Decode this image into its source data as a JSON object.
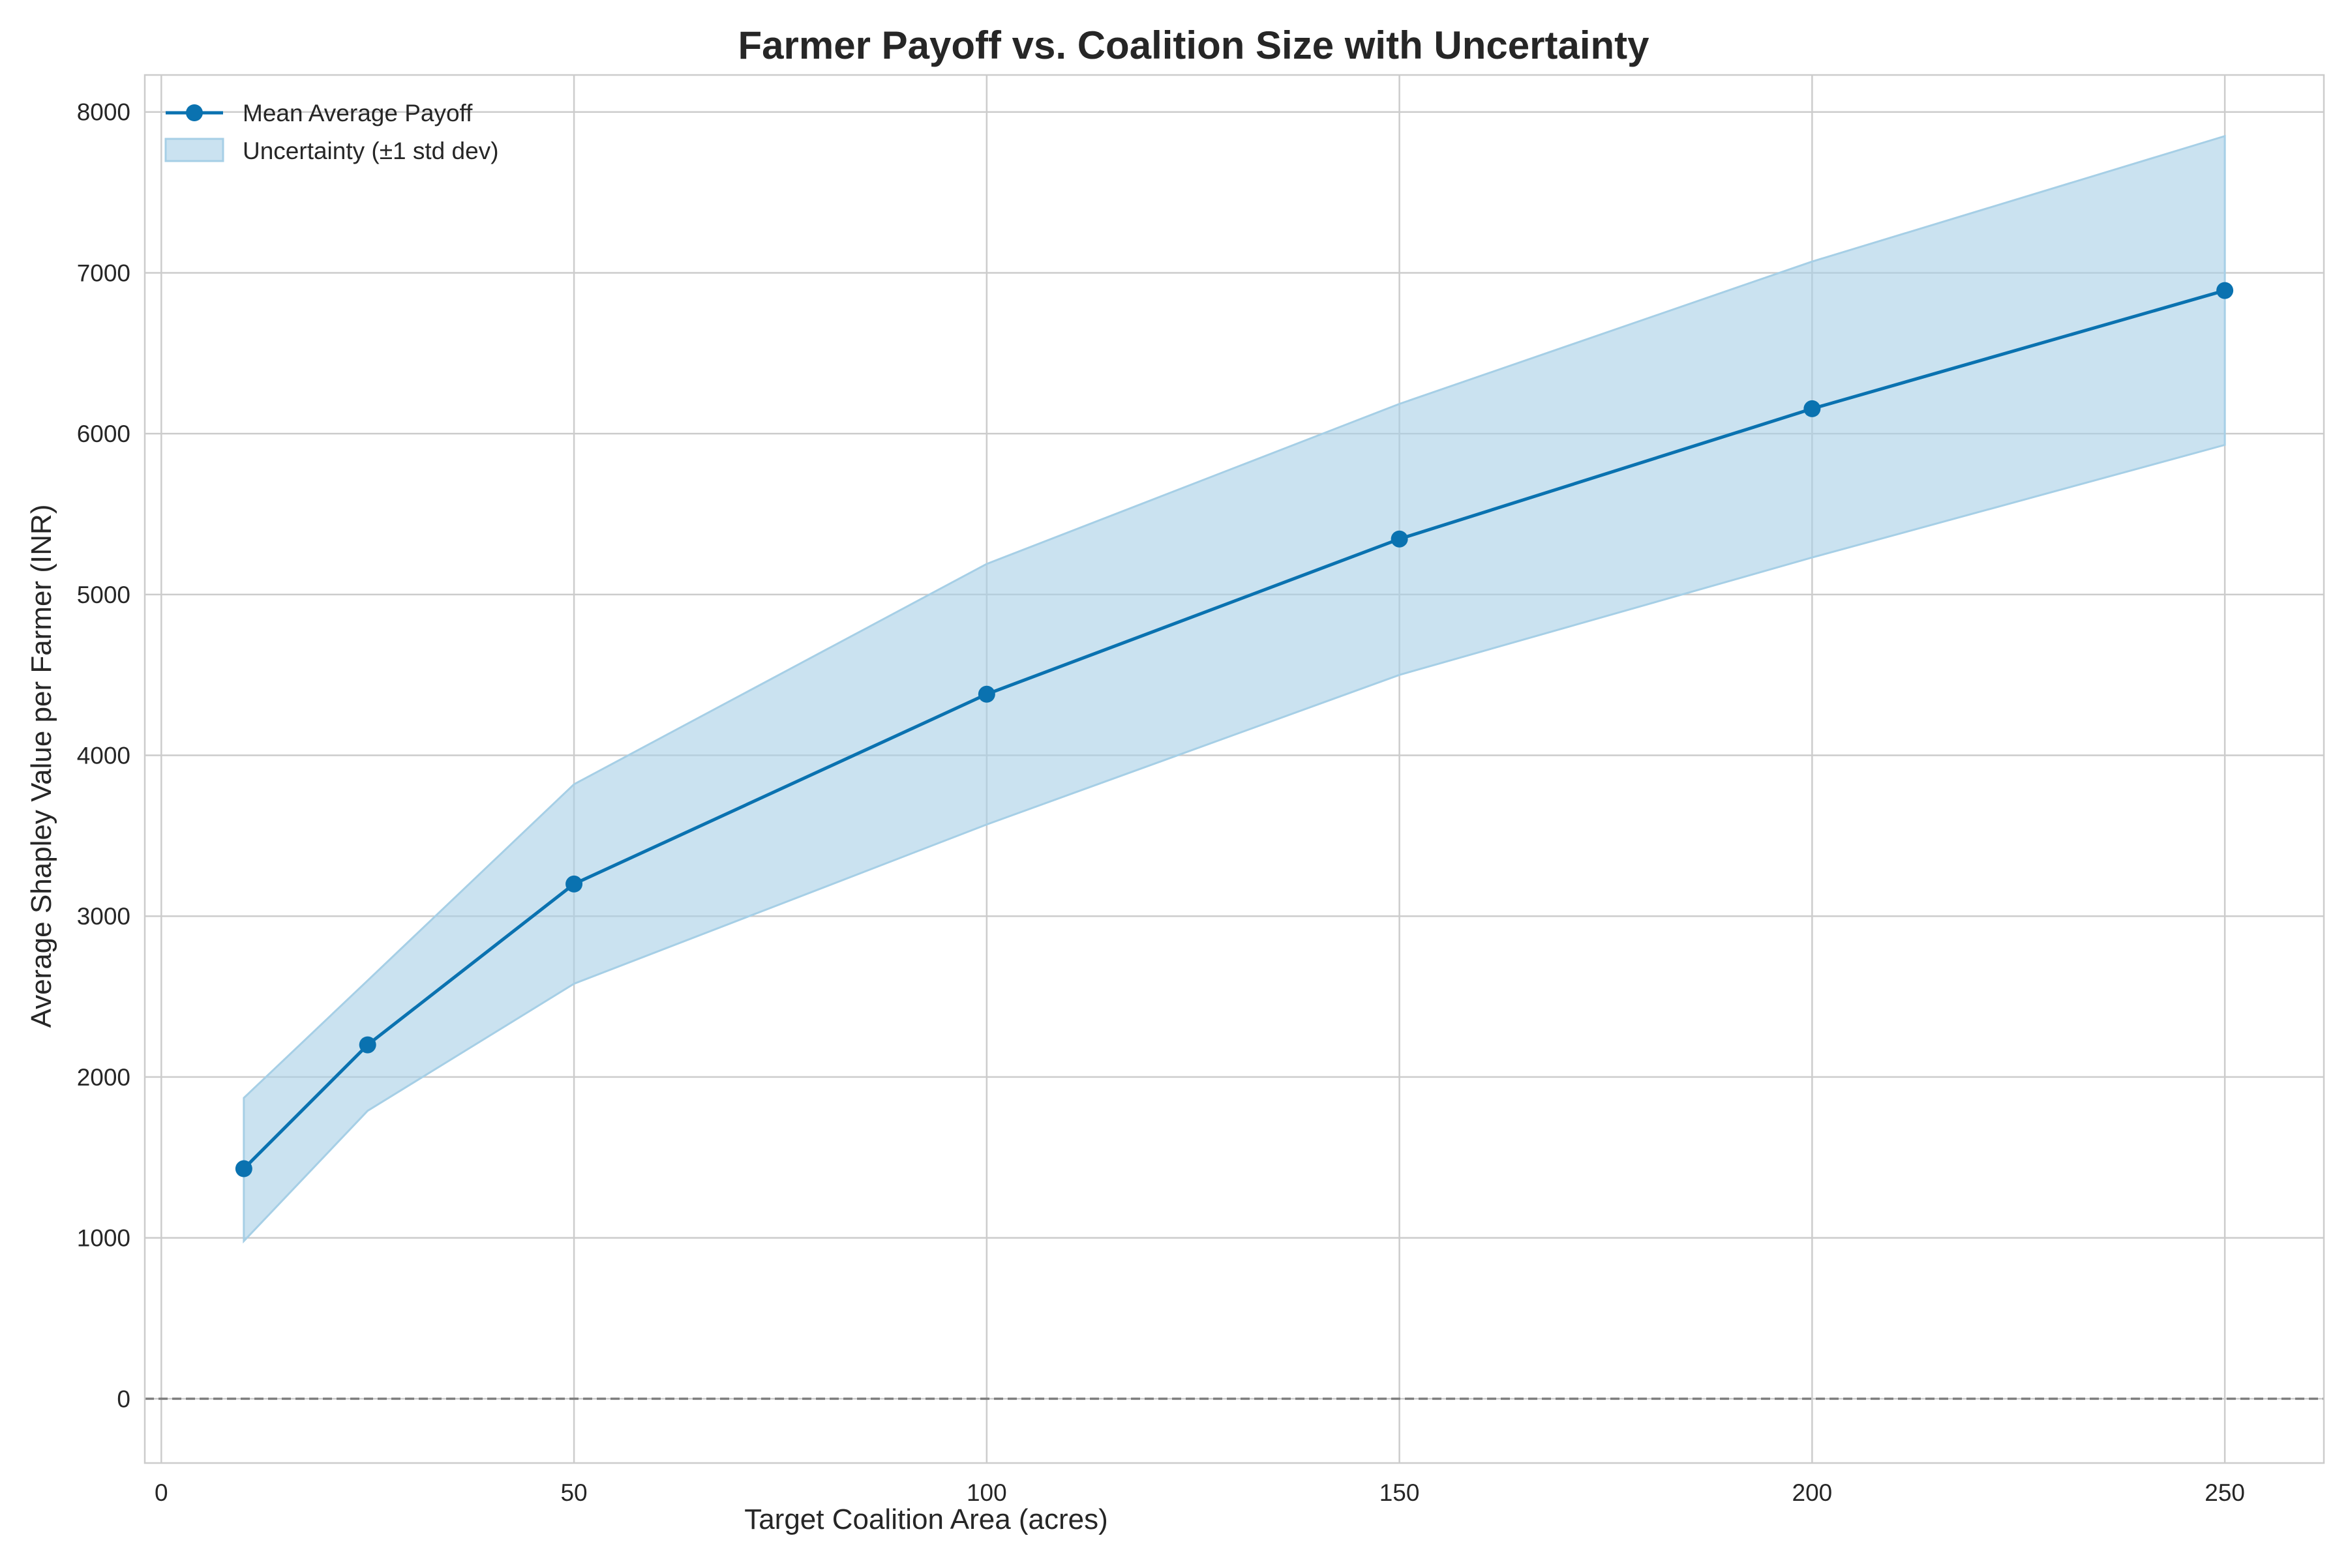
{
  "chart_data": {
    "type": "line",
    "title": "Farmer Payoff vs. Coalition Size with Uncertainty",
    "xlabel": "Target Coalition Area (acres)",
    "ylabel": "Average Shapley Value per Farmer (INR)",
    "xlim": [
      -2,
      262
    ],
    "ylim": [
      -400,
      8230
    ],
    "x_ticks": [
      0,
      50,
      100,
      150,
      200,
      250
    ],
    "y_ticks": [
      0,
      1000,
      2000,
      3000,
      4000,
      5000,
      6000,
      7000,
      8000
    ],
    "grid": true,
    "legend_position": "top-left",
    "reference_line": {
      "y": 0,
      "style": "dashed"
    },
    "x": [
      10,
      25,
      50,
      100,
      150,
      200,
      250
    ],
    "series": [
      {
        "name": "Mean Average Payoff",
        "kind": "line-marker",
        "color": "#0a72b0",
        "values": [
          1430,
          2200,
          3200,
          4380,
          5345,
          6155,
          6890
        ]
      },
      {
        "name": "Uncertainty (±1 std dev)",
        "kind": "band",
        "color": "#a6cfe6",
        "lower": [
          980,
          1790,
          2580,
          3570,
          4500,
          5230,
          5930
        ],
        "upper": [
          1870,
          2600,
          3820,
          5190,
          6185,
          7070,
          7850
        ]
      }
    ]
  }
}
